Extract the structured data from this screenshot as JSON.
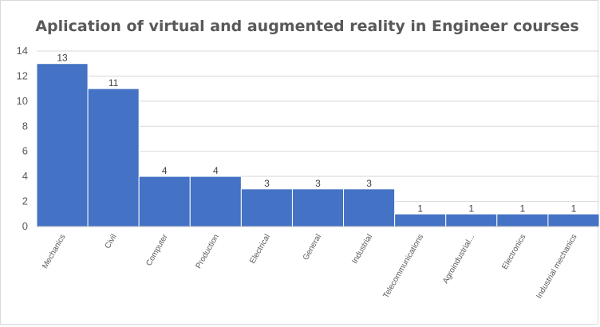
{
  "chart_data": {
    "type": "bar",
    "title": "Aplication of virtual and augmented reality in Engineer courses",
    "categories": [
      "Mechanics",
      "Civil",
      "Computer",
      "Production",
      "Electrical",
      "General",
      "Industrial",
      "Telecommunications",
      "Agroindustrial...",
      "Electronics",
      "Industrial mechanics"
    ],
    "values": [
      13,
      11,
      4,
      4,
      3,
      3,
      3,
      1,
      1,
      1,
      1
    ],
    "data_labels": [
      "13",
      "11",
      "4",
      "4",
      "3",
      "3",
      "3",
      "1",
      "1",
      "1",
      "1"
    ],
    "yticks": [
      "0",
      "2",
      "4",
      "6",
      "8",
      "10",
      "12",
      "14"
    ],
    "ylim": [
      0,
      14
    ],
    "xlabel": "",
    "ylabel": "",
    "grid": true,
    "legend": "none",
    "bar_color": "#4472c4"
  }
}
